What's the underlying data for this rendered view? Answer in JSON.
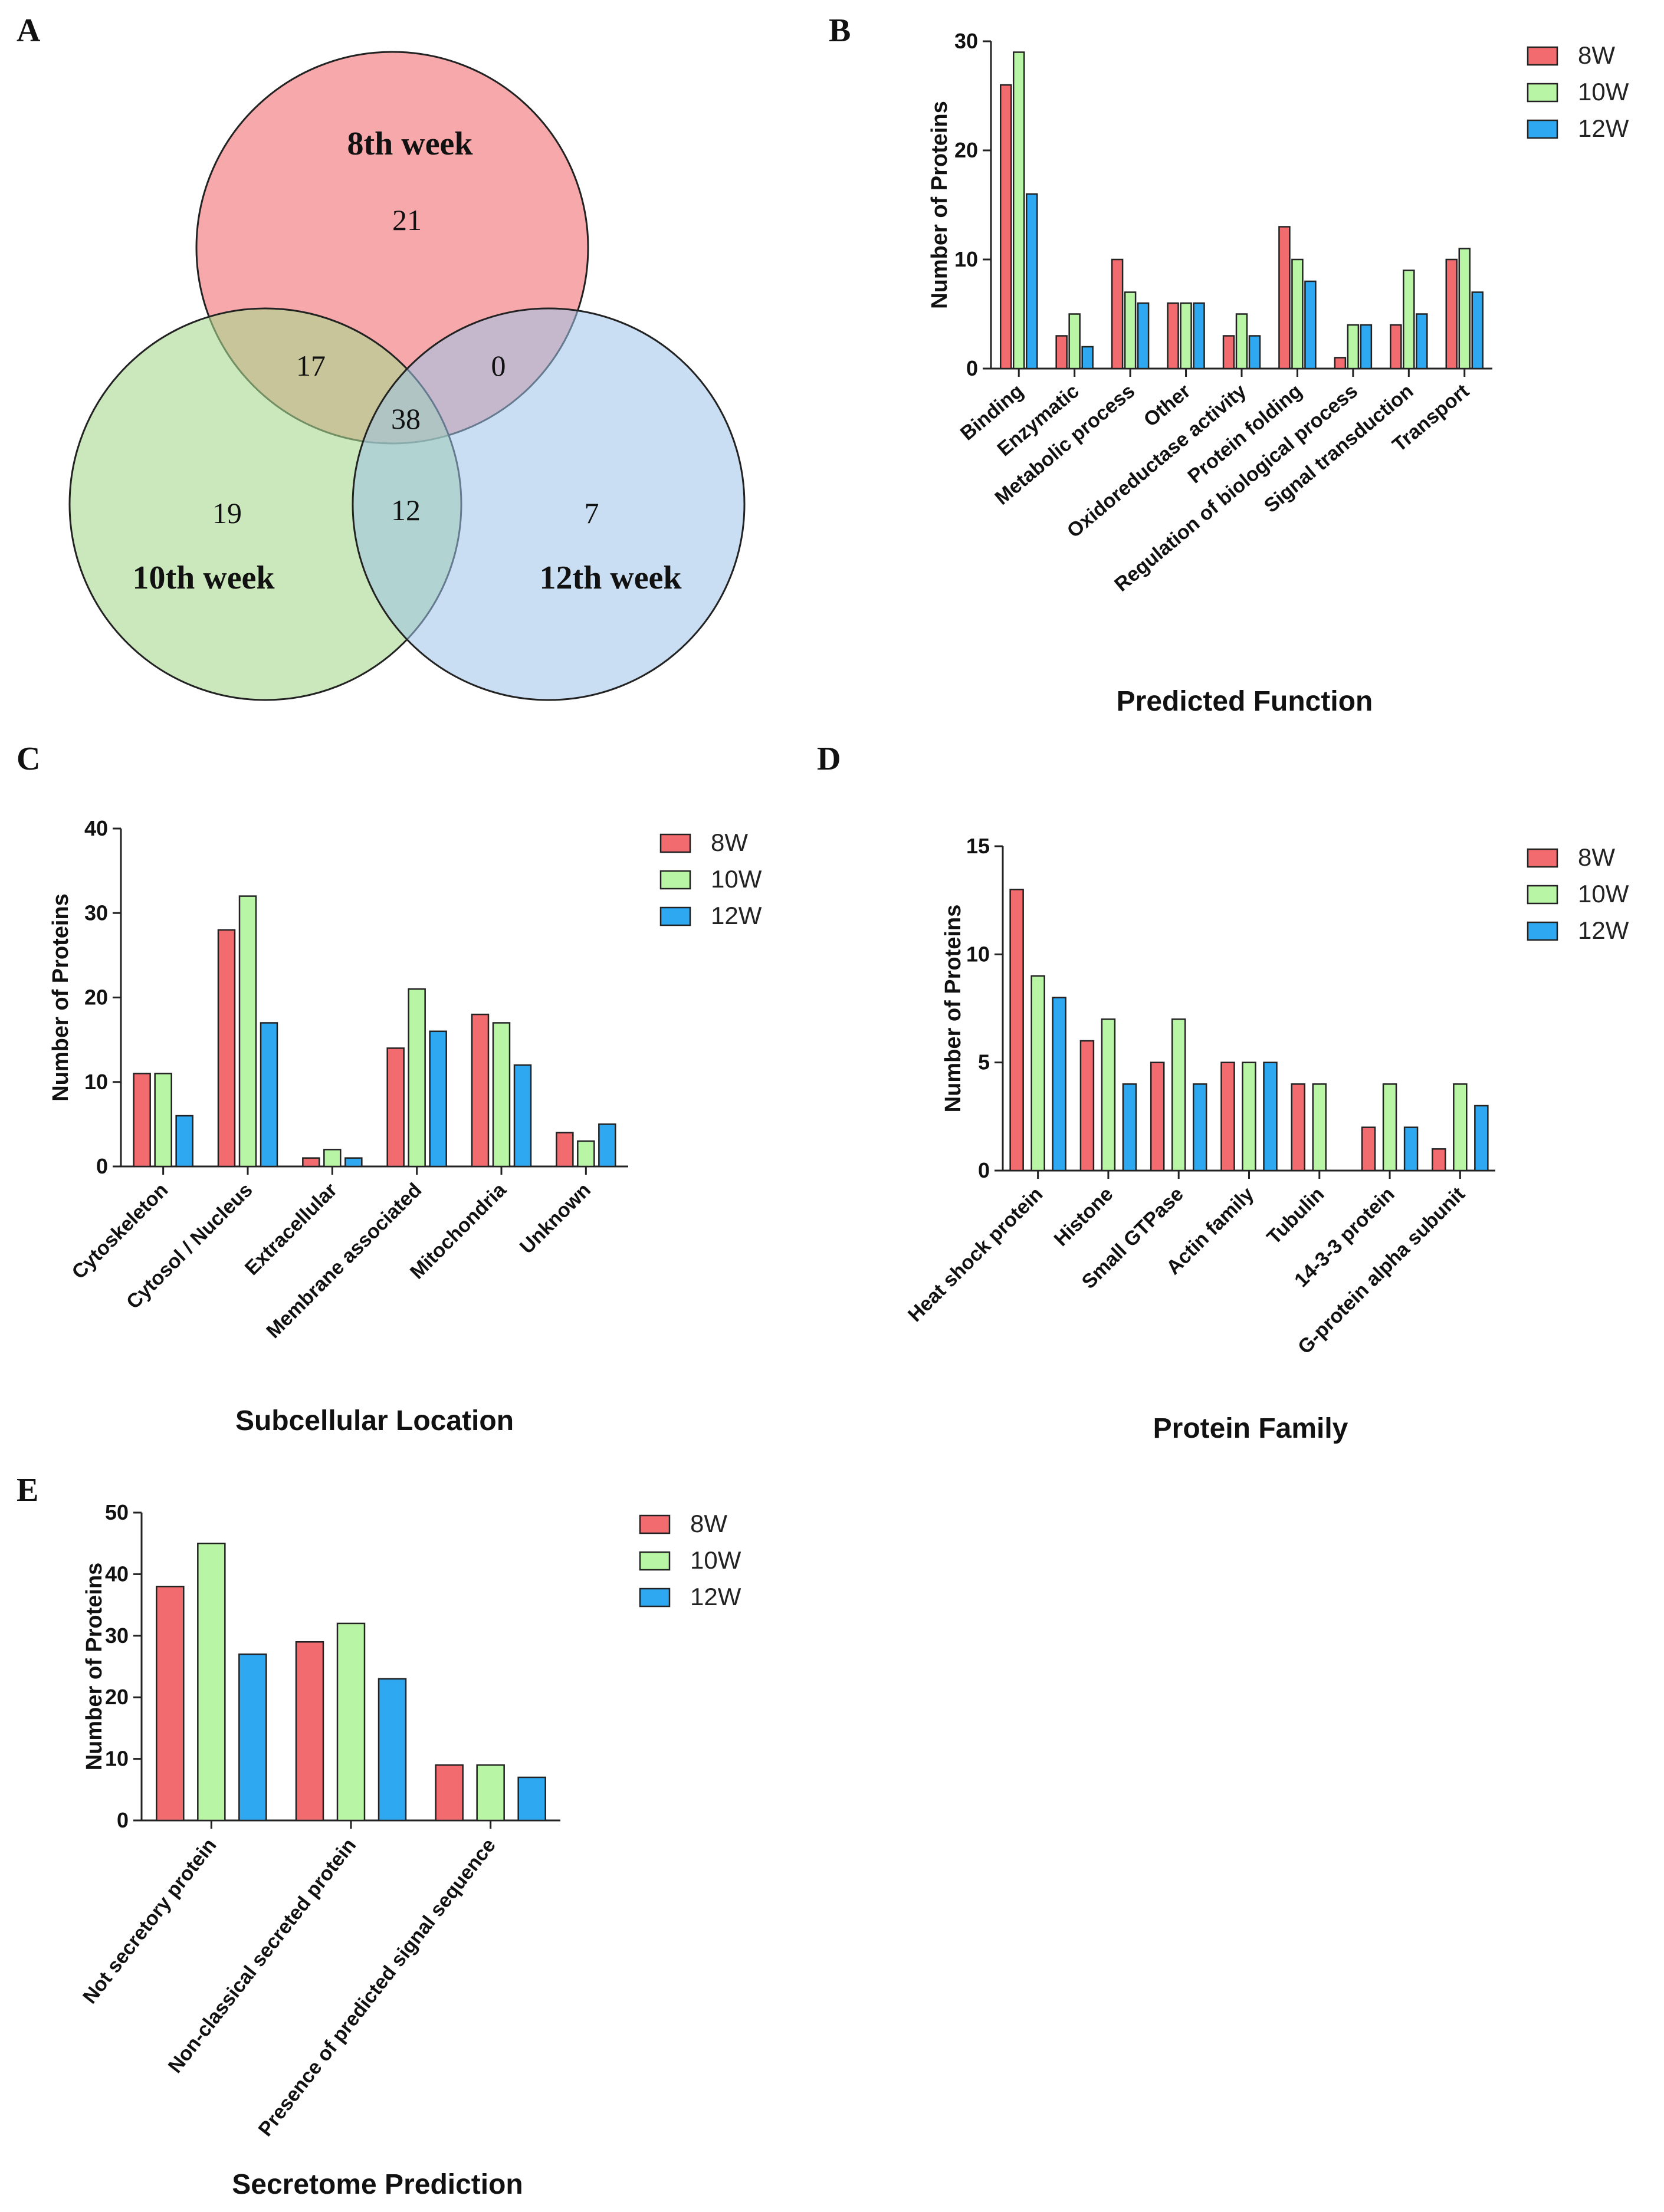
{
  "colors": {
    "w8": "#f26b6f",
    "w10": "#b8f5a5",
    "w12": "#2ea8f0",
    "venn_8th": "#f4868b",
    "venn_10th": "#a6d98d",
    "venn_12th": "#9cc3e8"
  },
  "panels": {
    "A": "A",
    "B": "B",
    "C": "C",
    "D": "D",
    "E": "E"
  },
  "venn": {
    "labels": {
      "w8": "8th week",
      "w10": "10th week",
      "w12": "12th week"
    },
    "regions": {
      "only_8": "21",
      "only_10": "19",
      "only_12": "7",
      "w8_w10": "17",
      "w8_w12": "0",
      "w10_w12": "12",
      "all": "38"
    }
  },
  "chart_data": [
    {
      "id": "B",
      "type": "bar",
      "xlabel": "Predicted Function",
      "ylabel": "Number of Proteins",
      "ylim": [
        0,
        30
      ],
      "yticks": [
        0,
        10,
        20,
        30
      ],
      "categories": [
        "Binding",
        "Enzymatic",
        "Metabolic process",
        "Other",
        "Oxidoreductase activity",
        "Protein folding",
        "Regulation of biological process",
        "Signal transduction",
        "Transport"
      ],
      "series": [
        {
          "name": "8W",
          "color_key": "w8",
          "values": [
            26,
            3,
            10,
            6,
            3,
            13,
            1,
            4,
            10
          ]
        },
        {
          "name": "10W",
          "color_key": "w10",
          "values": [
            29,
            5,
            7,
            6,
            5,
            10,
            4,
            9,
            11
          ]
        },
        {
          "name": "12W",
          "color_key": "w12",
          "values": [
            16,
            2,
            6,
            6,
            3,
            8,
            4,
            5,
            7
          ]
        }
      ],
      "legend": "top-right"
    },
    {
      "id": "C",
      "type": "bar",
      "xlabel": "Subcellular Location",
      "ylabel": "Number of Proteins",
      "ylim": [
        0,
        40
      ],
      "yticks": [
        0,
        10,
        20,
        30,
        40
      ],
      "categories": [
        "Cytoskeleton",
        "Cytosol / Nucleus",
        "Extracellular",
        "Membrane associated",
        "Mitochondria",
        "Unknown"
      ],
      "series": [
        {
          "name": "8W",
          "color_key": "w8",
          "values": [
            11,
            28,
            1,
            14,
            18,
            4
          ]
        },
        {
          "name": "10W",
          "color_key": "w10",
          "values": [
            11,
            32,
            2,
            21,
            17,
            3
          ]
        },
        {
          "name": "12W",
          "color_key": "w12",
          "values": [
            6,
            17,
            1,
            16,
            12,
            5
          ]
        }
      ],
      "legend": "top-right"
    },
    {
      "id": "D",
      "type": "bar",
      "xlabel": "Protein Family",
      "ylabel": "Number of Proteins",
      "ylim": [
        0,
        15
      ],
      "yticks": [
        0,
        5,
        10,
        15
      ],
      "categories": [
        "Heat shock protein",
        "Histone",
        "Small GTPase",
        "Actin family",
        "Tubulin",
        "14-3-3 protein",
        "G-protein alpha subunit"
      ],
      "series": [
        {
          "name": "8W",
          "color_key": "w8",
          "values": [
            13,
            6,
            5,
            5,
            4,
            2,
            1
          ]
        },
        {
          "name": "10W",
          "color_key": "w10",
          "values": [
            9,
            7,
            7,
            5,
            4,
            4,
            4
          ]
        },
        {
          "name": "12W",
          "color_key": "w12",
          "values": [
            8,
            4,
            4,
            5,
            0,
            2,
            3
          ]
        }
      ],
      "legend": "top-right"
    },
    {
      "id": "E",
      "type": "bar",
      "xlabel": "Secretome Prediction",
      "ylabel": "Number of Proteins",
      "ylim": [
        0,
        50
      ],
      "yticks": [
        0,
        10,
        20,
        30,
        40,
        50
      ],
      "categories": [
        "Not secretory protein",
        "Non-classical secreted protein",
        "Presence of predicted signal sequence"
      ],
      "series": [
        {
          "name": "8W",
          "color_key": "w8",
          "values": [
            38,
            29,
            9
          ]
        },
        {
          "name": "10W",
          "color_key": "w10",
          "values": [
            45,
            32,
            9
          ]
        },
        {
          "name": "12W",
          "color_key": "w12",
          "values": [
            27,
            23,
            7
          ]
        }
      ],
      "legend": "top-right"
    }
  ]
}
